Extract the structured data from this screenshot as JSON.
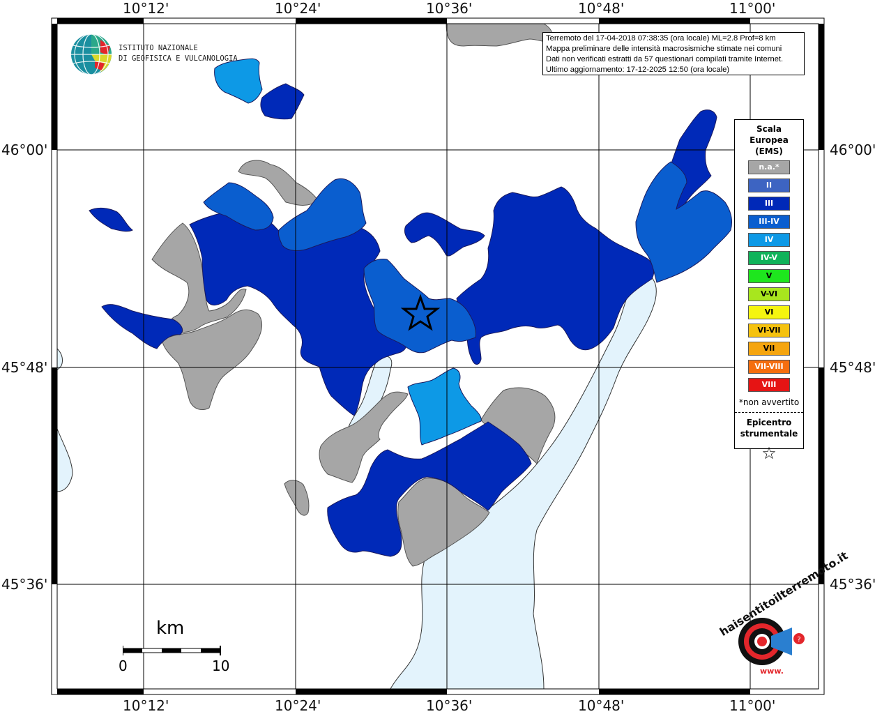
{
  "info": {
    "line1": "Terremoto del 17-04-2018 07:38:35 (ora locale) ML=2.8 Prof=8 km",
    "line2": "Mappa preliminare delle intensità macrosismiche stimate nei comuni",
    "line3": "Dati non verificati estratti da 57 questionari compilati tramite Internet.",
    "line4": "Ultimo aggiornamento: 17-12-2025 12:50 (ora locale)"
  },
  "institute": {
    "line1": "ISTITUTO NAZIONALE",
    "line2": "DI GEOFISICA E VULCANOLOGIA"
  },
  "axes": {
    "lon_top": [
      "10°12'",
      "10°24'",
      "10°36'",
      "10°48'",
      "11°00'"
    ],
    "lon_bottom": [
      "10°12'",
      "10°24'",
      "10°36'",
      "10°48'",
      "11°00'"
    ],
    "lat_left": [
      "46°00'",
      "45°48'",
      "45°36'"
    ],
    "lat_right": [
      "46°00'",
      "45°48'",
      "45°36'"
    ]
  },
  "legend": {
    "title_lines": [
      "Scala",
      "Europea",
      "(EMS)"
    ],
    "items": [
      {
        "label": "n.a.*",
        "color": "#a6a6a6",
        "text_color": "#ffffff"
      },
      {
        "label": "II",
        "color": "#3d64c2",
        "text_color": "#ffffff"
      },
      {
        "label": "III",
        "color": "#0029b8",
        "text_color": "#ffffff"
      },
      {
        "label": "III-IV",
        "color": "#0a5ecf",
        "text_color": "#ffffff"
      },
      {
        "label": "IV",
        "color": "#0d99e6",
        "text_color": "#ffffff"
      },
      {
        "label": "IV-V",
        "color": "#10b35a",
        "text_color": "#ffffff"
      },
      {
        "label": "V",
        "color": "#1ee61e",
        "text_color": "#000000"
      },
      {
        "label": "V-VI",
        "color": "#a8e61e",
        "text_color": "#000000"
      },
      {
        "label": "VI",
        "color": "#f5f50f",
        "text_color": "#000000"
      },
      {
        "label": "VI-VII",
        "color": "#f5c20f",
        "text_color": "#000000"
      },
      {
        "label": "VII",
        "color": "#f5a50f",
        "text_color": "#000000"
      },
      {
        "label": "VII-VIII",
        "color": "#f56e0f",
        "text_color": "#ffffff"
      },
      {
        "label": "VIII",
        "color": "#e61414",
        "text_color": "#ffffff"
      }
    ],
    "note": "*non avvertito",
    "epicenter_lines": [
      "Epicentro",
      "strumentale"
    ],
    "epicenter_symbol": "☆"
  },
  "scale_bar": {
    "unit": "km",
    "label_start": "0",
    "label_end": "10"
  },
  "haisentito": {
    "text": "haisentitoilterremoto.it",
    "prefix": "www."
  },
  "colors": {
    "lake": "#e3f3fc",
    "na": "#a6a6a6",
    "int_III": "#0029b8",
    "int_IIIIV": "#0a5ecf",
    "int_IV": "#0d99e6",
    "brand_red": "#e3262b"
  }
}
